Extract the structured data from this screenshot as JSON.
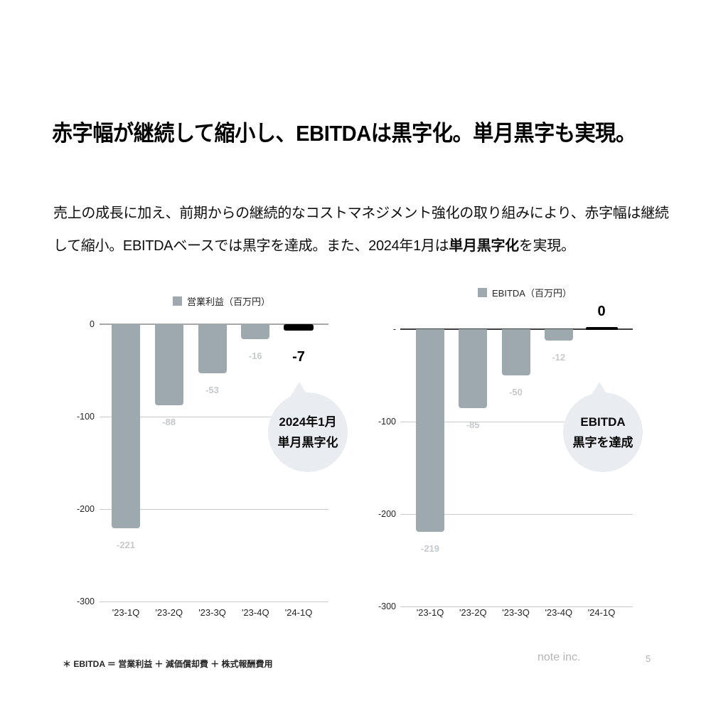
{
  "slide": {
    "title": "赤字幅が継続して縮小し、EBITDAは黒字化。単月黒字も実現。",
    "body": {
      "part1": "売上の成長に加え、前期からの継続的なコストマネジメント強化の取り組みにより、赤字幅は継続して縮小。EBITDAベースでは黒字を達成。また、2024年1月は",
      "bold": "単月黒字化",
      "part2": "を実現。"
    },
    "footnote": "＊ EBITDA ＝ 営業利益 ＋ 減価償却費 ＋ 株式報酬費用",
    "company": "note inc.",
    "page_number": "5"
  },
  "chart_data": [
    {
      "type": "bar",
      "legend": "営業利益（百万円）",
      "categories": [
        "'23-1Q",
        "'23-2Q",
        "'23-3Q",
        "'23-4Q",
        "'24-1Q"
      ],
      "values": [
        -221,
        -88,
        -53,
        -16,
        -7
      ],
      "value_labels": [
        "-221",
        "-88",
        "-53",
        "-16",
        "-7"
      ],
      "highlight_index": 4,
      "ylim": [
        -300,
        0
      ],
      "yticks": [
        {
          "label": "0",
          "value": 0
        },
        {
          "label": "-100",
          "value": -100
        },
        {
          "label": "-200",
          "value": -200
        },
        {
          "label": "-300",
          "value": -300
        }
      ],
      "grid": true,
      "legend_position": "top",
      "callout": {
        "line1": "2024年1月",
        "line2": "単月黒字化"
      },
      "colors": {
        "bar": "#9ea8af",
        "highlight": "#000000"
      }
    },
    {
      "type": "bar",
      "legend": "EBITDA（百万円）",
      "categories": [
        "'23-1Q",
        "'23-2Q",
        "'23-3Q",
        "'23-4Q",
        "'24-1Q"
      ],
      "values": [
        -219,
        -85,
        -50,
        -12,
        0
      ],
      "value_labels": [
        "-219",
        "-85",
        "-50",
        "-12",
        "0"
      ],
      "highlight_index": 4,
      "ylim": [
        -300,
        0
      ],
      "yticks": [
        {
          "label": "-",
          "value": 0
        },
        {
          "label": "-100",
          "value": -100
        },
        {
          "label": "-200",
          "value": -200
        },
        {
          "label": "-300",
          "value": -300
        }
      ],
      "grid": true,
      "legend_position": "top",
      "callout": {
        "line1": "EBITDA",
        "line2": "黒字を達成"
      },
      "colors": {
        "bar": "#9ea8af",
        "highlight": "#000000"
      }
    }
  ]
}
